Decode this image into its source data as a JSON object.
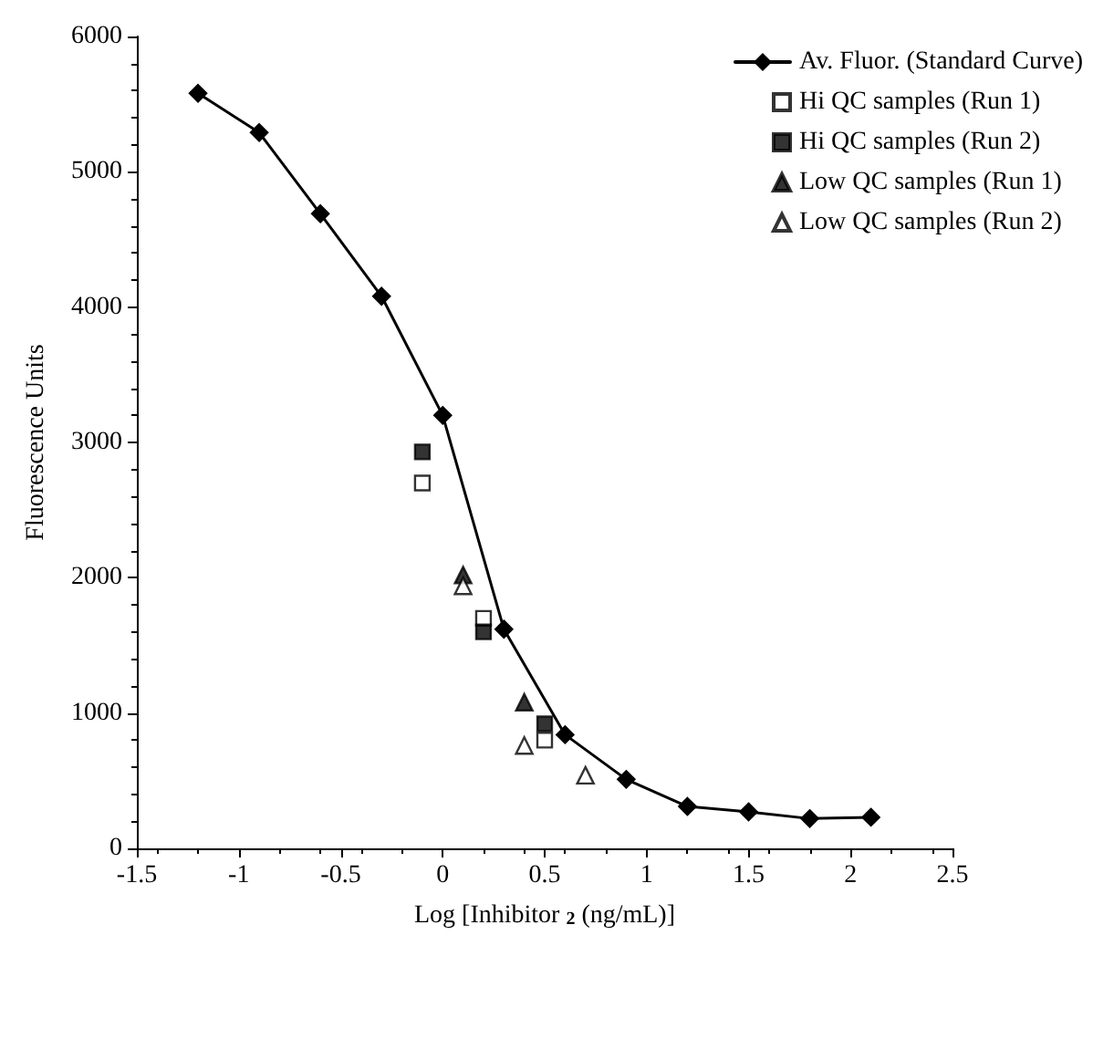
{
  "chart_data": {
    "type": "scatter",
    "xlabel": "Log [Inhibitor $_{2}$ (ng/mL)]",
    "ylabel": "Fluorescence Units",
    "xlim": [
      -1.5,
      2.5
    ],
    "xticks": [
      -1.5,
      -1,
      -0.5,
      0,
      0.5,
      1,
      1.5,
      2,
      2.5
    ],
    "ylim": [
      0,
      6000
    ],
    "yticks": [
      0,
      1000,
      2000,
      3000,
      4000,
      5000,
      6000
    ],
    "grid": false,
    "legend": "top right",
    "series": [
      {
        "name": "Av. Fluor. (Standard Curve)",
        "type": "line",
        "marker": "diamond",
        "line_style": "solid",
        "color": "#000000",
        "x": [
          -1.2,
          -0.9,
          -0.6,
          -0.3,
          0,
          0.3,
          0.6,
          0.9,
          1.2,
          1.5,
          1.8,
          2.1
        ],
        "values": [
          5580,
          5290,
          4690,
          4080,
          3200,
          1620,
          840,
          510,
          310,
          270,
          220,
          230
        ]
      },
      {
        "name": "Hi QC samples (Run 1)",
        "marker": "square",
        "color": "#ffffff",
        "x": [
          -0.1,
          0.2,
          0.5
        ],
        "values": [
          2700,
          1700,
          800
        ]
      },
      {
        "name": "Hi QC samples (Run 2)",
        "marker": "square",
        "color": "#000000",
        "x": [
          -0.1,
          0.2,
          0.5
        ],
        "values": [
          2930,
          1600,
          920
        ]
      },
      {
        "name": "Low QC samples (Run 1)",
        "marker": "triangle",
        "color": "#000000",
        "x": [
          0.1,
          0.4
        ],
        "values": [
          2020,
          1080
        ]
      },
      {
        "name": "Low QC samples (Run 2)",
        "marker": "triangle",
        "color": "#ffffff",
        "x": [
          0.1,
          0.4,
          0.7
        ],
        "values": [
          1940,
          760,
          540
        ]
      }
    ]
  }
}
